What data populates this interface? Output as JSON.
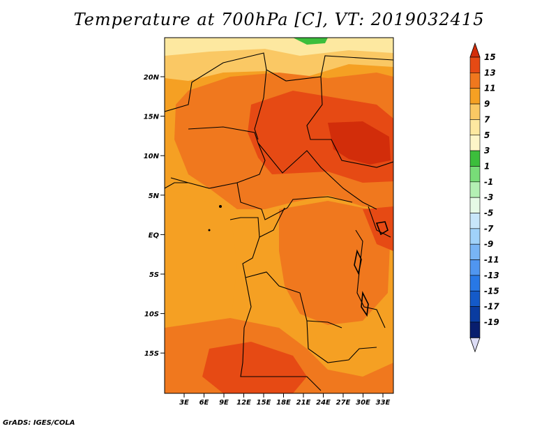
{
  "title": "Temperature at 700hPa [C], VT: 2019032415",
  "credit": "GrADS: IGES/COLA",
  "map": {
    "lat_ticks": [
      "20N",
      "15N",
      "10N",
      "5N",
      "EQ",
      "5S",
      "10S",
      "15S"
    ],
    "lon_ticks": [
      "3E",
      "6E",
      "9E",
      "12E",
      "15E",
      "18E",
      "21E",
      "24E",
      "27E",
      "30E",
      "33E"
    ],
    "fill_colors": {
      "warm_13": "#e64a14",
      "warm_11": "#f0781e",
      "warm_9": "#f5a023",
      "warm_7": "#fac864",
      "warm_5": "#fde8a0",
      "hot_15": "#d22d0a",
      "cool_1": "#3cbe3c"
    }
  },
  "colorbar": {
    "labels": [
      "15",
      "13",
      "11",
      "9",
      "7",
      "5",
      "3",
      "1",
      "-1",
      "-3",
      "-5",
      "-7",
      "-9",
      "-11",
      "-13",
      "-15",
      "-17",
      "-19"
    ],
    "colors": [
      "#d22d0a",
      "#e64a14",
      "#f0781e",
      "#f5a023",
      "#fac864",
      "#fde8a0",
      "#fdf5c8",
      "#3cbe3c",
      "#78dc78",
      "#b4f0b4",
      "#e6fae6",
      "#c8e6fa",
      "#a0d2fa",
      "#78b4f5",
      "#5096f0",
      "#2878e6",
      "#145ac8",
      "#0a3ca0",
      "#081e6e",
      "#dcdcf5"
    ]
  }
}
